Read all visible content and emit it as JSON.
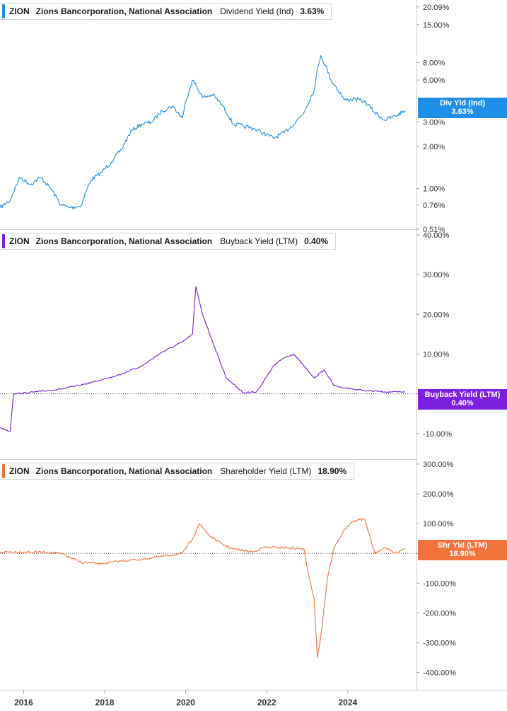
{
  "panels": [
    {
      "ticker": "ZION",
      "company": "Zions Bancorporation, National Association",
      "metric": "Dividend Yield (Ind)",
      "value": "3.63%",
      "tag_label": "Div Yld (Ind)",
      "tag_value": "3.63%",
      "color": "#1f8ee8"
    },
    {
      "ticker": "ZION",
      "company": "Zions Bancorporation, National Association",
      "metric": "Buyback Yield (LTM)",
      "value": "0.40%",
      "tag_label": "Buyback Yield (LTM)",
      "tag_value": "0.40%",
      "color": "#7b1fe0"
    },
    {
      "ticker": "ZION",
      "company": "Zions Bancorporation, National Association",
      "metric": "Shareholder Yield (LTM)",
      "value": "18.90%",
      "tag_label": "Shr Yld (LTM)",
      "tag_value": "18.90%",
      "color": "#f4733d"
    }
  ],
  "chart_data": [
    {
      "type": "line",
      "scale": "log",
      "ylim": [
        0.51,
        22
      ],
      "yticks": [
        {
          "v": 20.09,
          "label": "20.09%"
        },
        {
          "v": 15.0,
          "label": "15.00%"
        },
        {
          "v": 8.0,
          "label": "8.00%"
        },
        {
          "v": 6.0,
          "label": "6.00%"
        },
        {
          "v": 3.0,
          "label": "3.00%"
        },
        {
          "v": 2.0,
          "label": "2.00%"
        },
        {
          "v": 1.0,
          "label": "1.00%"
        },
        {
          "v": 0.76,
          "label": "0.76%"
        },
        {
          "v": 0.51,
          "label": "0.51%"
        }
      ],
      "x": [
        "2015-06",
        "2015-09",
        "2015-12",
        "2016-03",
        "2016-06",
        "2016-09",
        "2016-12",
        "2017-03",
        "2017-06",
        "2017-09",
        "2017-12",
        "2018-03",
        "2018-06",
        "2018-09",
        "2018-12",
        "2019-03",
        "2019-06",
        "2019-09",
        "2019-12",
        "2020-03",
        "2020-06",
        "2020-09",
        "2020-12",
        "2021-03",
        "2021-06",
        "2021-09",
        "2021-12",
        "2022-03",
        "2022-06",
        "2022-09",
        "2022-12",
        "2023-03",
        "2023-05",
        "2023-08",
        "2023-12",
        "2024-03",
        "2024-06",
        "2024-09",
        "2024-12",
        "2025-03",
        "2025-06"
      ],
      "values": [
        0.73,
        0.82,
        1.2,
        1.07,
        1.2,
        1.0,
        0.76,
        0.73,
        0.75,
        1.15,
        1.3,
        1.55,
        1.9,
        2.6,
        2.9,
        3.0,
        3.6,
        3.9,
        3.2,
        6.0,
        4.5,
        4.7,
        3.9,
        2.9,
        2.8,
        2.7,
        2.5,
        2.3,
        2.5,
        2.9,
        3.5,
        5.0,
        9.0,
        6.0,
        4.3,
        4.4,
        4.2,
        3.5,
        3.1,
        3.3,
        3.63
      ]
    },
    {
      "type": "line",
      "ylim": [
        -12,
        40
      ],
      "yticks": [
        {
          "v": 40,
          "label": "40.00%"
        },
        {
          "v": 30,
          "label": "30.00%"
        },
        {
          "v": 20,
          "label": "20.00%"
        },
        {
          "v": 10,
          "label": "10.00%"
        },
        {
          "v": 0,
          "label": "0.00%"
        },
        {
          "v": -10,
          "label": "-10.00%"
        }
      ],
      "x": [
        "2015-06",
        "2015-09",
        "2015-10",
        "2015-12",
        "2016-06",
        "2016-12",
        "2017-06",
        "2017-12",
        "2018-06",
        "2018-12",
        "2019-06",
        "2019-12",
        "2020-03",
        "2020-04",
        "2020-06",
        "2020-09",
        "2021-01",
        "2021-06",
        "2021-10",
        "2021-12",
        "2022-03",
        "2022-06",
        "2022-09",
        "2022-12",
        "2023-03",
        "2023-06",
        "2023-09",
        "2023-12",
        "2024-06",
        "2024-12",
        "2025-06"
      ],
      "values": [
        -8.5,
        -9.5,
        0.0,
        0.1,
        0.6,
        1.2,
        2.2,
        3.5,
        5.0,
        7.0,
        10.5,
        13.0,
        15.0,
        27.0,
        20.0,
        13.0,
        4.0,
        0.3,
        0.5,
        3.0,
        7.0,
        9.0,
        10.0,
        7.0,
        4.0,
        6.0,
        2.0,
        1.5,
        0.8,
        0.5,
        0.4
      ]
    },
    {
      "type": "line",
      "ylim": [
        -420,
        300
      ],
      "yticks": [
        {
          "v": 300,
          "label": "300.00%"
        },
        {
          "v": 200,
          "label": "200.00%"
        },
        {
          "v": 100,
          "label": "100.00%"
        },
        {
          "v": 0,
          "label": "0.00%"
        },
        {
          "v": -100,
          "label": "-100.00%"
        },
        {
          "v": -200,
          "label": "-200.00%"
        },
        {
          "v": -300,
          "label": "-300.00%"
        },
        {
          "v": -400,
          "label": "-400.00%"
        }
      ],
      "x": [
        "2015-06",
        "2016-06",
        "2016-12",
        "2017-06",
        "2017-12",
        "2018-06",
        "2018-12",
        "2019-06",
        "2019-12",
        "2020-03",
        "2020-05",
        "2020-08",
        "2020-12",
        "2021-03",
        "2021-06",
        "2021-09",
        "2021-12",
        "2022-06",
        "2022-12",
        "2023-01",
        "2023-03",
        "2023-04",
        "2023-05",
        "2023-07",
        "2023-09",
        "2023-12",
        "2024-03",
        "2024-06",
        "2024-09",
        "2024-12",
        "2025-03",
        "2025-06"
      ],
      "values": [
        5,
        5,
        0,
        -30,
        -35,
        -25,
        -20,
        -10,
        0,
        50,
        100,
        60,
        30,
        15,
        10,
        5,
        20,
        20,
        15,
        -50,
        -150,
        -350,
        -280,
        -80,
        20,
        80,
        110,
        115,
        0,
        20,
        0,
        18.9
      ]
    }
  ],
  "x_axis": {
    "ticks": [
      {
        "t": "2016-01",
        "label": "2016"
      },
      {
        "t": "2018-01",
        "label": "2018"
      },
      {
        "t": "2020-01",
        "label": "2020"
      },
      {
        "t": "2022-01",
        "label": "2022"
      },
      {
        "t": "2024-01",
        "label": "2024"
      }
    ]
  }
}
